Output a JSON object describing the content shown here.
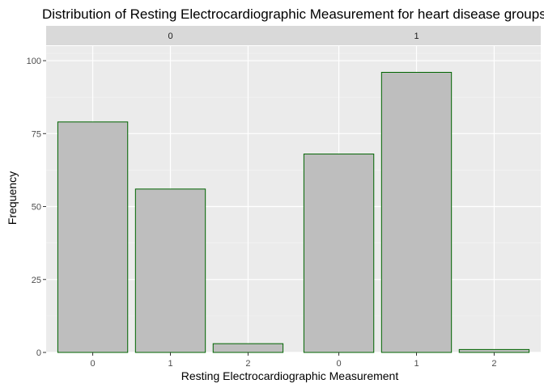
{
  "chart_data": {
    "type": "bar",
    "title": "Distribution of Resting Electrocardiographic Measurement for heart disease groups",
    "xlabel": "Resting Electrocardiographic Measurement",
    "ylabel": "Frequency",
    "ylim": [
      0,
      105
    ],
    "yticks": [
      0,
      25,
      50,
      75,
      100
    ],
    "grid": true,
    "facet_variable_values": [
      "0",
      "1"
    ],
    "categories": [
      "0",
      "1",
      "2"
    ],
    "bar_fill": "#bebebe",
    "bar_outline": "#006400",
    "panel_background": "#ebebeb",
    "strip_background": "#d9d9d9",
    "panels": [
      {
        "strip": "0",
        "values": [
          79,
          56,
          3
        ]
      },
      {
        "strip": "1",
        "values": [
          68,
          96,
          1
        ]
      }
    ]
  }
}
